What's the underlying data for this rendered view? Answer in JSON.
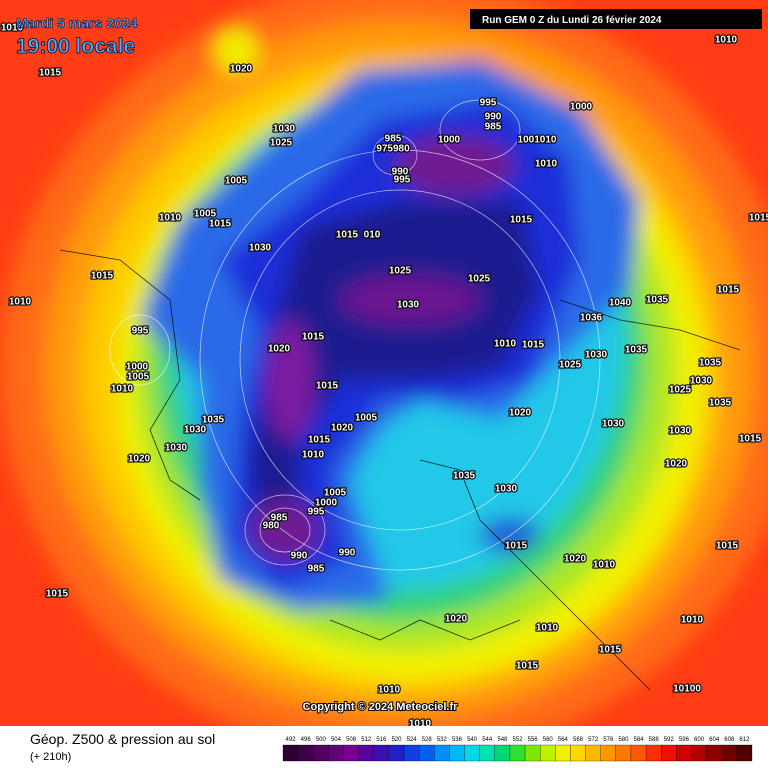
{
  "header": {
    "date": "Mardi 5 mars 2024",
    "time": "19:00 locale",
    "run": "Run GEM 0 Z du Lundi 26 février 2024"
  },
  "copyright": "Copyright © 2024 Meteociel.fr",
  "footer": {
    "title": "Géop. Z500 & pression au sol",
    "lead": "(+ 210h)"
  },
  "colorbar": {
    "ticks": [
      492,
      496,
      500,
      504,
      508,
      512,
      516,
      520,
      524,
      528,
      532,
      536,
      540,
      544,
      548,
      552,
      556,
      560,
      564,
      568,
      572,
      576,
      580,
      584,
      588,
      592,
      596,
      600,
      604,
      608,
      612
    ]
  },
  "isobar_labels": [
    "1010",
    "1015",
    "1020",
    "1030",
    "1025",
    "1005",
    "1010",
    "1005",
    "1015",
    "1030",
    "1015",
    "1010",
    "995",
    "1000",
    "1005",
    "1010",
    "1035",
    "1030",
    "1030",
    "1020",
    "1015",
    "1010",
    "985",
    "975980",
    "990",
    "995",
    "1000",
    "995",
    "990",
    "985",
    "1000",
    "1001010",
    "1010",
    "1015",
    "1015",
    "010",
    "1025",
    "1025",
    "1030",
    "1015",
    "1020",
    "1010",
    "1015",
    "1015",
    "1005",
    "1020",
    "1015",
    "1010",
    "1020",
    "1025",
    "1030",
    "1030",
    "1036",
    "1040",
    "1035",
    "1035",
    "1035",
    "1030",
    "1005",
    "1000",
    "995",
    "985",
    "980",
    "990",
    "985",
    "990",
    "1015",
    "1020",
    "1010",
    "1020",
    "1010",
    "1015",
    "1015",
    "1010",
    "1010",
    "1010",
    "10100",
    "1010",
    "1015",
    "1035",
    "1030",
    "1025",
    "1035",
    "1030",
    "1020",
    "1015",
    "1015",
    "1015"
  ]
}
